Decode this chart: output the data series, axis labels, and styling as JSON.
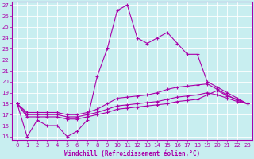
{
  "xlabel": "Windchill (Refroidissement éolien,°C)",
  "background_color": "#c8eef0",
  "line_color": "#aa00aa",
  "xlim": [
    -0.5,
    23.5
  ],
  "ylim": [
    14.7,
    27.3
  ],
  "yticks": [
    15,
    16,
    17,
    18,
    19,
    20,
    21,
    22,
    23,
    24,
    25,
    26,
    27
  ],
  "xticks": [
    0,
    1,
    2,
    3,
    4,
    5,
    6,
    7,
    8,
    9,
    10,
    11,
    12,
    13,
    14,
    15,
    16,
    17,
    18,
    19,
    20,
    21,
    22,
    23
  ],
  "curve1_x": [
    0,
    1,
    2,
    3,
    4,
    5,
    6,
    7,
    8,
    9,
    10,
    11,
    12,
    13,
    14,
    15,
    16,
    17,
    18,
    19,
    20,
    21,
    22,
    23
  ],
  "curve1_y": [
    18,
    15,
    16.5,
    16,
    16,
    15,
    15.5,
    16.5,
    20.5,
    23,
    26.5,
    27,
    24,
    23.5,
    24,
    24.5,
    23.5,
    22.5,
    22.5,
    20,
    19.5,
    19,
    18.5,
    18
  ],
  "curve2_x": [
    0,
    1,
    2,
    3,
    4,
    5,
    6,
    7,
    8,
    9,
    10,
    11,
    12,
    13,
    14,
    15,
    16,
    17,
    18,
    19,
    20,
    21,
    22,
    23
  ],
  "curve2_y": [
    18,
    17.2,
    17.2,
    17.2,
    17.2,
    17.0,
    17.0,
    17.2,
    17.5,
    18.0,
    18.5,
    18.6,
    18.7,
    18.8,
    19.0,
    19.3,
    19.5,
    19.6,
    19.7,
    19.8,
    19.3,
    18.8,
    18.3,
    18.0
  ],
  "curve3_x": [
    0,
    1,
    2,
    3,
    4,
    5,
    6,
    7,
    8,
    9,
    10,
    11,
    12,
    13,
    14,
    15,
    16,
    17,
    18,
    19,
    20,
    21,
    22,
    23
  ],
  "curve3_y": [
    18,
    17.0,
    17.0,
    17.0,
    17.0,
    16.8,
    16.8,
    17.0,
    17.2,
    17.5,
    17.8,
    17.9,
    18.0,
    18.1,
    18.2,
    18.4,
    18.6,
    18.7,
    18.8,
    19.0,
    18.8,
    18.5,
    18.2,
    18.0
  ],
  "curve4_x": [
    0,
    1,
    2,
    3,
    4,
    5,
    6,
    7,
    8,
    9,
    10,
    11,
    12,
    13,
    14,
    15,
    16,
    17,
    18,
    19,
    20,
    21,
    22,
    23
  ],
  "curve4_y": [
    18,
    16.8,
    16.8,
    16.8,
    16.8,
    16.6,
    16.6,
    16.8,
    17.0,
    17.2,
    17.5,
    17.6,
    17.7,
    17.8,
    17.9,
    18.0,
    18.2,
    18.3,
    18.4,
    18.8,
    19.2,
    18.7,
    18.4,
    18.0
  ],
  "tick_fontsize": 5,
  "xlabel_fontsize": 5.5
}
